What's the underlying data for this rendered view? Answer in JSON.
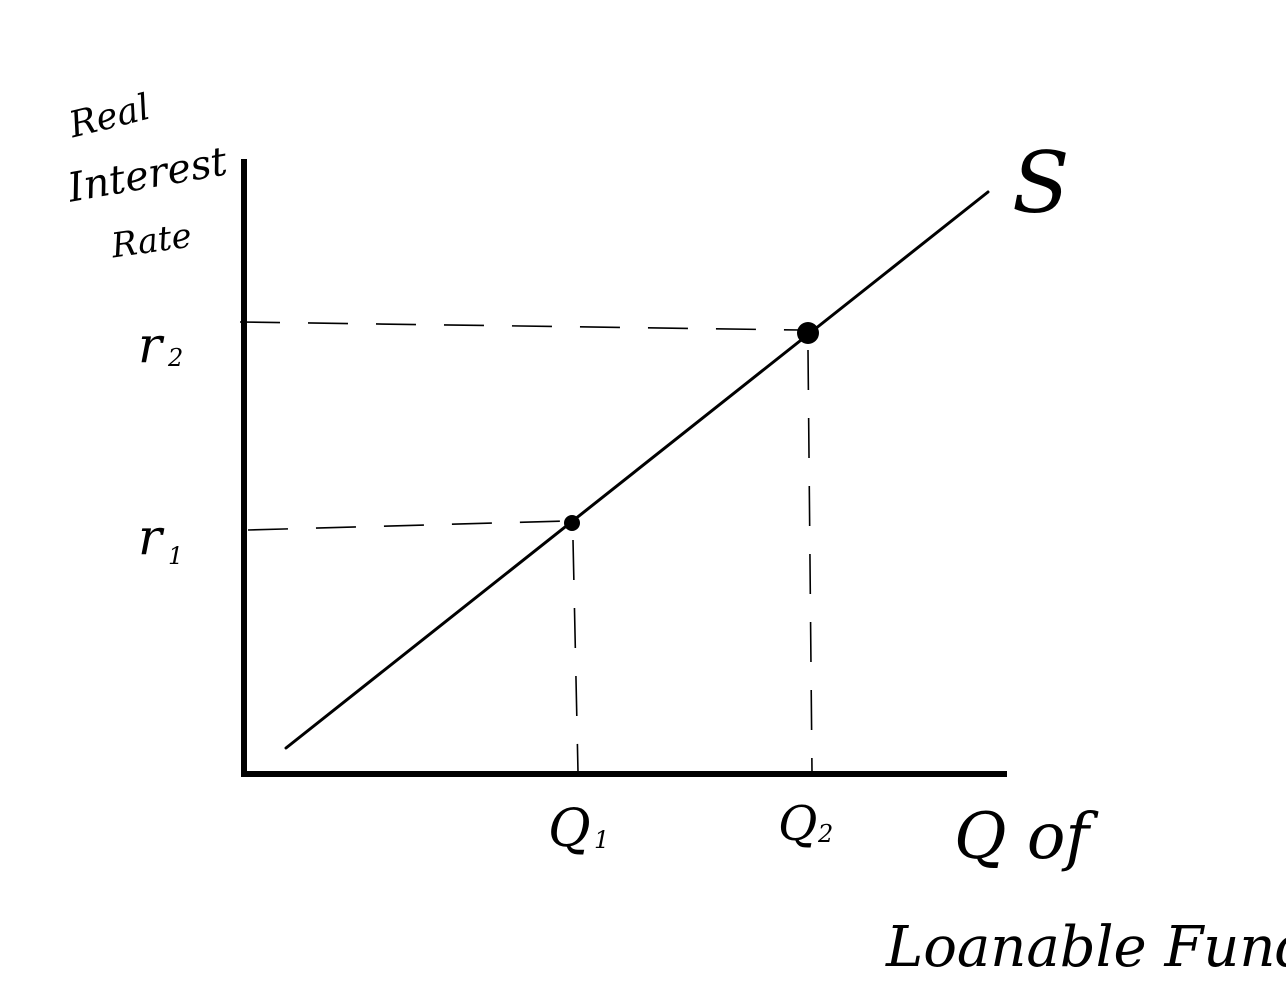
{
  "diagram": {
    "y_axis_label": [
      "Real",
      "Interest",
      "Rate"
    ],
    "x_axis_label": [
      "Q of",
      "Loanable Funds"
    ],
    "curve_label": "S",
    "points": [
      {
        "rate_label": "r",
        "rate_sub": "1",
        "quantity_label": "Q",
        "quantity_sub": "1"
      },
      {
        "rate_label": "r",
        "rate_sub": "2",
        "quantity_label": "Q",
        "quantity_sub": "2"
      }
    ]
  },
  "colors": {
    "ink": "#000000",
    "background": "#ffffff"
  }
}
